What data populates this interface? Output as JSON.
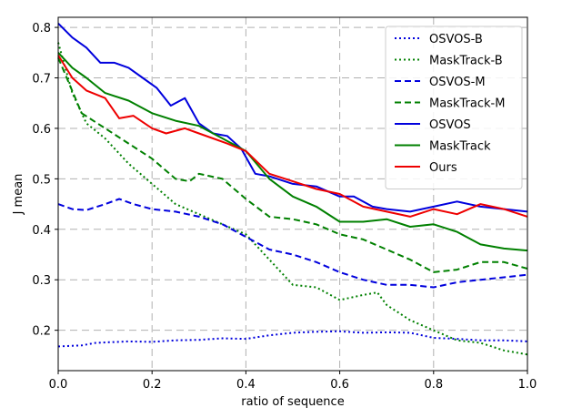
{
  "chart_data": {
    "type": "line",
    "title": "",
    "xlabel": "ratio of sequence",
    "ylabel": "J mean",
    "xlim": [
      0.0,
      1.0
    ],
    "ylim": [
      0.12,
      0.82
    ],
    "xticks": [
      "0.0",
      "0.2",
      "0.4",
      "0.6",
      "0.8",
      "1.0"
    ],
    "yticks": [
      "0.2",
      "0.3",
      "0.4",
      "0.5",
      "0.6",
      "0.7",
      "0.8"
    ],
    "grid": true,
    "legend": "top-right",
    "series": [
      {
        "name": "OSVOS-B",
        "color": "#0000dd",
        "dash": "dotted",
        "x": [
          0,
          0.05,
          0.08,
          0.1,
          0.15,
          0.2,
          0.25,
          0.3,
          0.35,
          0.4,
          0.45,
          0.5,
          0.55,
          0.6,
          0.65,
          0.7,
          0.75,
          0.8,
          0.85,
          0.9,
          0.95,
          1.0
        ],
        "y": [
          0.168,
          0.17,
          0.175,
          0.176,
          0.178,
          0.177,
          0.18,
          0.181,
          0.184,
          0.183,
          0.19,
          0.195,
          0.197,
          0.198,
          0.195,
          0.196,
          0.195,
          0.185,
          0.183,
          0.18,
          0.18,
          0.178
        ]
      },
      {
        "name": "MaskTrack-B",
        "color": "#008000",
        "dash": "dotted",
        "x": [
          0,
          0.03,
          0.06,
          0.1,
          0.15,
          0.2,
          0.25,
          0.3,
          0.35,
          0.4,
          0.45,
          0.5,
          0.55,
          0.6,
          0.65,
          0.68,
          0.7,
          0.75,
          0.8,
          0.85,
          0.9,
          0.95,
          1.0
        ],
        "y": [
          0.77,
          0.67,
          0.61,
          0.58,
          0.53,
          0.49,
          0.45,
          0.43,
          0.41,
          0.39,
          0.34,
          0.29,
          0.285,
          0.26,
          0.27,
          0.275,
          0.25,
          0.22,
          0.2,
          0.18,
          0.175,
          0.16,
          0.152
        ]
      },
      {
        "name": "OSVOS-M",
        "color": "#0000dd",
        "dash": "dashed",
        "x": [
          0,
          0.03,
          0.06,
          0.1,
          0.13,
          0.16,
          0.2,
          0.25,
          0.3,
          0.35,
          0.4,
          0.45,
          0.5,
          0.55,
          0.6,
          0.65,
          0.7,
          0.75,
          0.8,
          0.85,
          0.9,
          0.95,
          1.0
        ],
        "y": [
          0.45,
          0.44,
          0.438,
          0.45,
          0.46,
          0.45,
          0.44,
          0.435,
          0.425,
          0.41,
          0.385,
          0.36,
          0.35,
          0.335,
          0.315,
          0.3,
          0.29,
          0.29,
          0.285,
          0.295,
          0.3,
          0.305,
          0.31
        ]
      },
      {
        "name": "MaskTrack-M",
        "color": "#008000",
        "dash": "dashed",
        "x": [
          0,
          0.05,
          0.1,
          0.15,
          0.2,
          0.25,
          0.28,
          0.3,
          0.35,
          0.4,
          0.45,
          0.5,
          0.55,
          0.6,
          0.65,
          0.7,
          0.75,
          0.8,
          0.85,
          0.9,
          0.95,
          1.0
        ],
        "y": [
          0.74,
          0.63,
          0.6,
          0.57,
          0.54,
          0.5,
          0.495,
          0.51,
          0.5,
          0.46,
          0.425,
          0.42,
          0.41,
          0.39,
          0.38,
          0.36,
          0.34,
          0.315,
          0.32,
          0.335,
          0.335,
          0.322
        ]
      },
      {
        "name": "OSVOS",
        "color": "#0000dd",
        "dash": "solid",
        "x": [
          0,
          0.03,
          0.06,
          0.09,
          0.12,
          0.15,
          0.18,
          0.21,
          0.24,
          0.27,
          0.3,
          0.33,
          0.36,
          0.39,
          0.42,
          0.45,
          0.5,
          0.55,
          0.6,
          0.63,
          0.67,
          0.7,
          0.75,
          0.8,
          0.85,
          0.9,
          0.95,
          1.0
        ],
        "y": [
          0.808,
          0.78,
          0.76,
          0.73,
          0.73,
          0.72,
          0.7,
          0.68,
          0.645,
          0.66,
          0.61,
          0.59,
          0.585,
          0.56,
          0.51,
          0.505,
          0.49,
          0.485,
          0.465,
          0.465,
          0.445,
          0.44,
          0.435,
          0.445,
          0.455,
          0.445,
          0.44,
          0.435
        ]
      },
      {
        "name": "MaskTrack",
        "color": "#008000",
        "dash": "solid",
        "x": [
          0,
          0.03,
          0.06,
          0.1,
          0.15,
          0.2,
          0.25,
          0.3,
          0.35,
          0.4,
          0.45,
          0.5,
          0.55,
          0.6,
          0.65,
          0.7,
          0.75,
          0.8,
          0.85,
          0.9,
          0.95,
          1.0
        ],
        "y": [
          0.75,
          0.72,
          0.7,
          0.67,
          0.655,
          0.63,
          0.615,
          0.605,
          0.58,
          0.555,
          0.5,
          0.465,
          0.445,
          0.415,
          0.415,
          0.42,
          0.405,
          0.41,
          0.395,
          0.37,
          0.362,
          0.358
        ]
      },
      {
        "name": "Ours",
        "color": "#ee0000",
        "dash": "solid",
        "x": [
          0,
          0.03,
          0.06,
          0.1,
          0.13,
          0.16,
          0.2,
          0.23,
          0.27,
          0.3,
          0.33,
          0.36,
          0.4,
          0.45,
          0.5,
          0.55,
          0.6,
          0.65,
          0.7,
          0.75,
          0.8,
          0.85,
          0.9,
          0.95,
          1.0
        ],
        "y": [
          0.745,
          0.7,
          0.675,
          0.66,
          0.62,
          0.625,
          0.6,
          0.59,
          0.6,
          0.59,
          0.58,
          0.57,
          0.555,
          0.51,
          0.495,
          0.48,
          0.47,
          0.445,
          0.435,
          0.425,
          0.44,
          0.43,
          0.45,
          0.44,
          0.425
        ]
      }
    ]
  }
}
